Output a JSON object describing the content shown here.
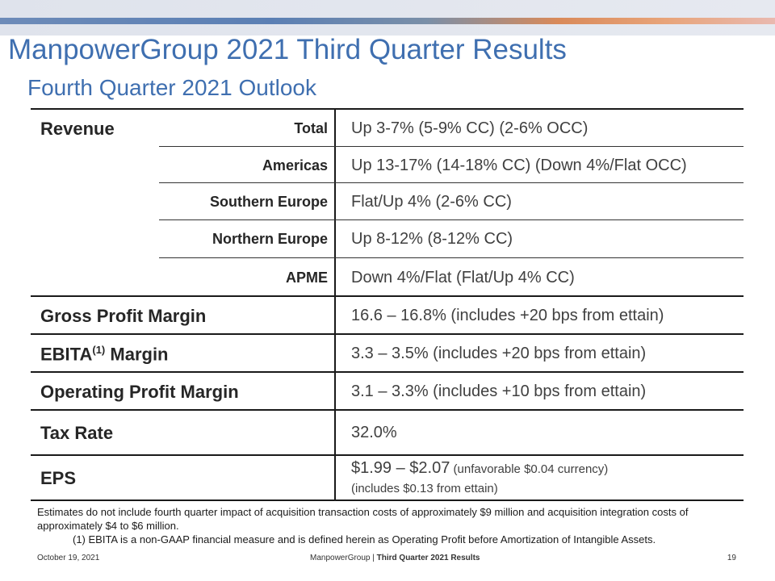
{
  "header": {
    "title": "ManpowerGroup 2021 Third Quarter Results",
    "subtitle": "Fourth Quarter 2021 Outlook"
  },
  "table": {
    "revenue_label": "Revenue",
    "revenue_rows": [
      {
        "region": "Total",
        "value": "Up 3-7% (5-9% CC) (2-6% OCC)"
      },
      {
        "region": "Americas",
        "value": "Up 13-17% (14-18% CC) (Down 4%/Flat OCC)"
      },
      {
        "region": "Southern Europe",
        "value": "Flat/Up 4% (2-6% CC)"
      },
      {
        "region": "Northern Europe",
        "value": "Up 8-12% (8-12% CC)"
      },
      {
        "region": "APME",
        "value": "Down 4%/Flat (Flat/Up 4% CC)"
      }
    ],
    "gross_profit": {
      "label": "Gross Profit Margin",
      "value": "16.6 – 16.8% (includes +20 bps from ettain)"
    },
    "ebita": {
      "label": "EBITA",
      "sup": "(1)",
      "label_suffix": " Margin",
      "value": "3.3 – 3.5% (includes +20 bps from ettain)"
    },
    "operating": {
      "label": "Operating Profit Margin",
      "value": "3.1 – 3.3% (includes +10 bps from ettain)"
    },
    "tax": {
      "label": "Tax Rate",
      "value": "32.0%"
    },
    "eps": {
      "label": "EPS",
      "value_main": "$1.99 – $2.07",
      "value_note": " (unfavorable $0.04 currency)",
      "value_line2": "(includes $0.13 from ettain)"
    }
  },
  "notes": {
    "estimate": "Estimates do not include fourth quarter impact of acquisition transaction costs of approximately $9 million and acquisition integration costs of approximately $4 to $6 million.",
    "footnote": "(1)  EBITA is a non-GAAP financial measure and is defined herein as Operating Profit before Amortization of Intangible Assets."
  },
  "footer": {
    "date": "October 19, 2021",
    "company": "ManpowerGroup",
    "separator": " | ",
    "report": "Third Quarter 2021 Results",
    "page": "19"
  }
}
